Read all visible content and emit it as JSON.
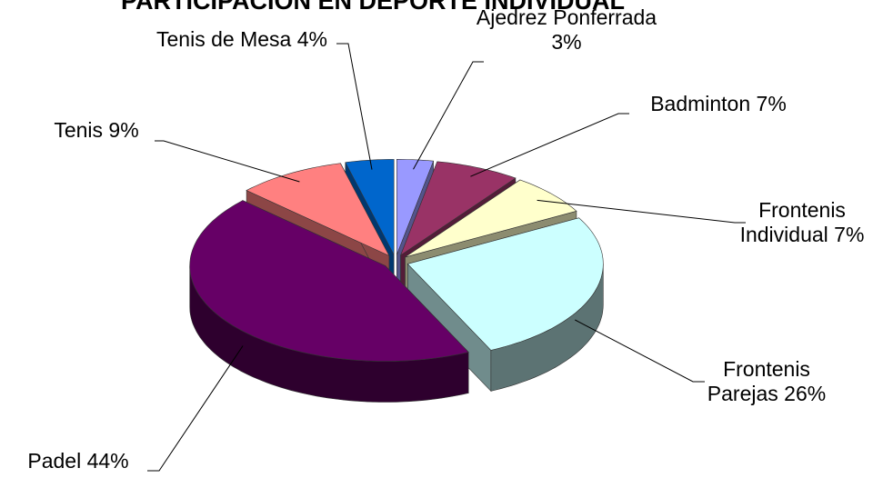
{
  "chart_data": {
    "type": "pie",
    "title": "PARTICIPACIÓN EN DEPORTE INDIVIDUAL",
    "categories": [
      "Ajedrez Ponferrada",
      "Badminton",
      "Frontenis Individual",
      "Frontenis Parejas",
      "Padel",
      "Tenis",
      "Tenis de Mesa"
    ],
    "values": [
      3,
      7,
      7,
      26,
      44,
      9,
      4
    ],
    "value_labels": [
      "3%",
      "7%",
      "7%",
      "26%",
      "44%",
      "9%",
      "4%"
    ],
    "colors": [
      "#9999ff",
      "#993366",
      "#ffffcc",
      "#ccffff",
      "#660066",
      "#ff8080",
      "#0066cc"
    ]
  }
}
